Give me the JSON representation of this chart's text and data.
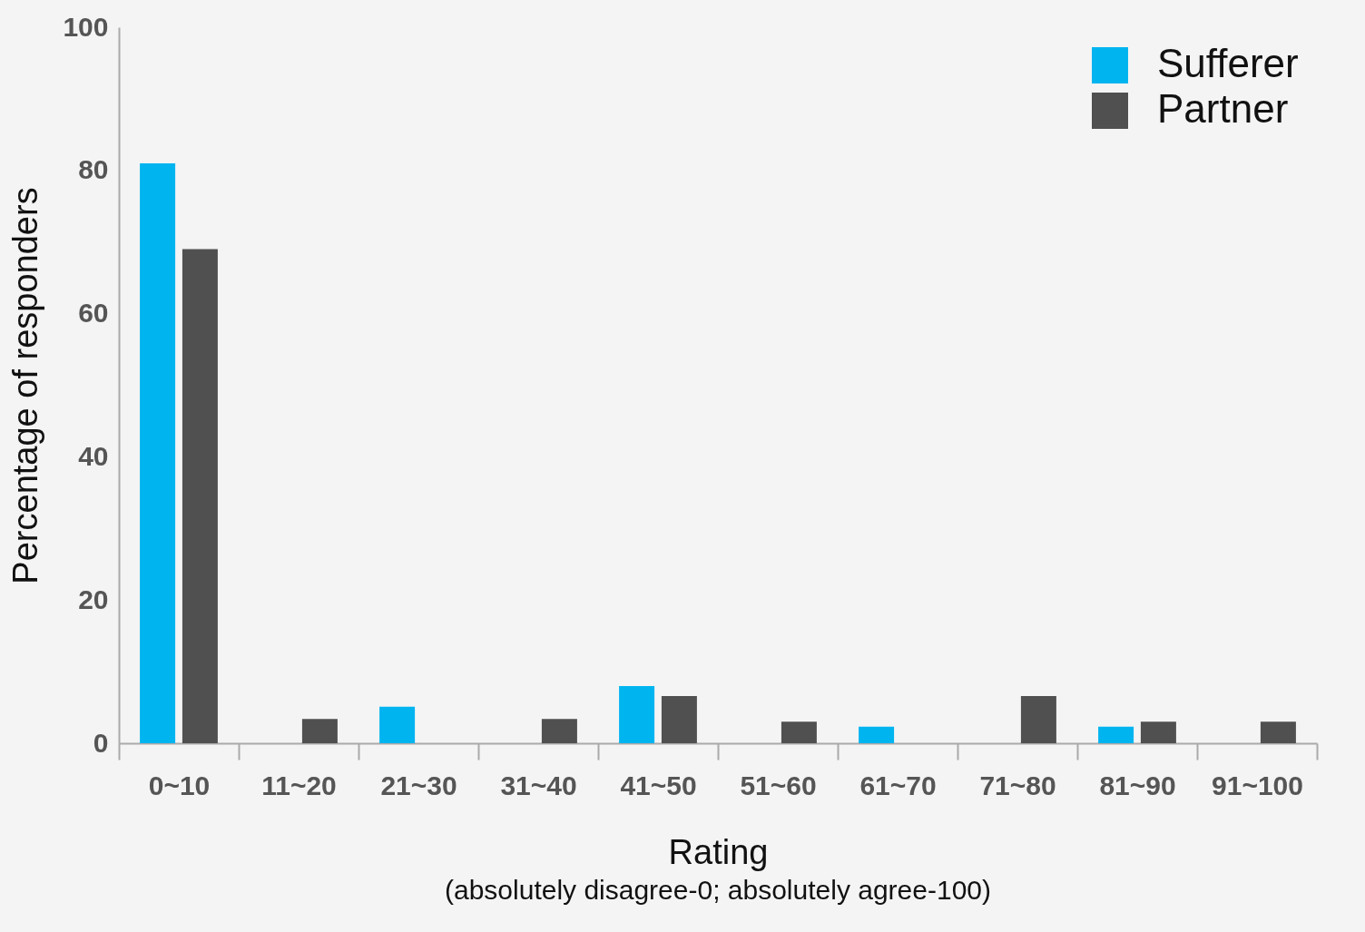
{
  "chart_data": {
    "type": "bar",
    "xlabel": "Rating",
    "ylabel": "Percentage of responders",
    "annotations": [
      "(absolutely disagree-0; absolutely agree-100)"
    ],
    "categories": [
      "0~10",
      "11~20",
      "21~30",
      "31~40",
      "41~50",
      "51~60",
      "61~70",
      "71~80",
      "81~90",
      "91~100"
    ],
    "series": [
      {
        "name": "Sufferer",
        "color": "#00b4f0",
        "values": [
          81,
          0,
          5.1,
          0,
          8,
          0,
          2.3,
          0,
          2.3,
          0
        ]
      },
      {
        "name": "Partner",
        "color": "#505050",
        "values": [
          69,
          3.4,
          0,
          3.4,
          6.6,
          3,
          0,
          6.6,
          3,
          3
        ]
      }
    ],
    "ylim": [
      0,
      100
    ],
    "yticks": [
      0,
      20,
      40,
      60,
      80,
      100
    ],
    "grid": false,
    "legend": "top right"
  }
}
